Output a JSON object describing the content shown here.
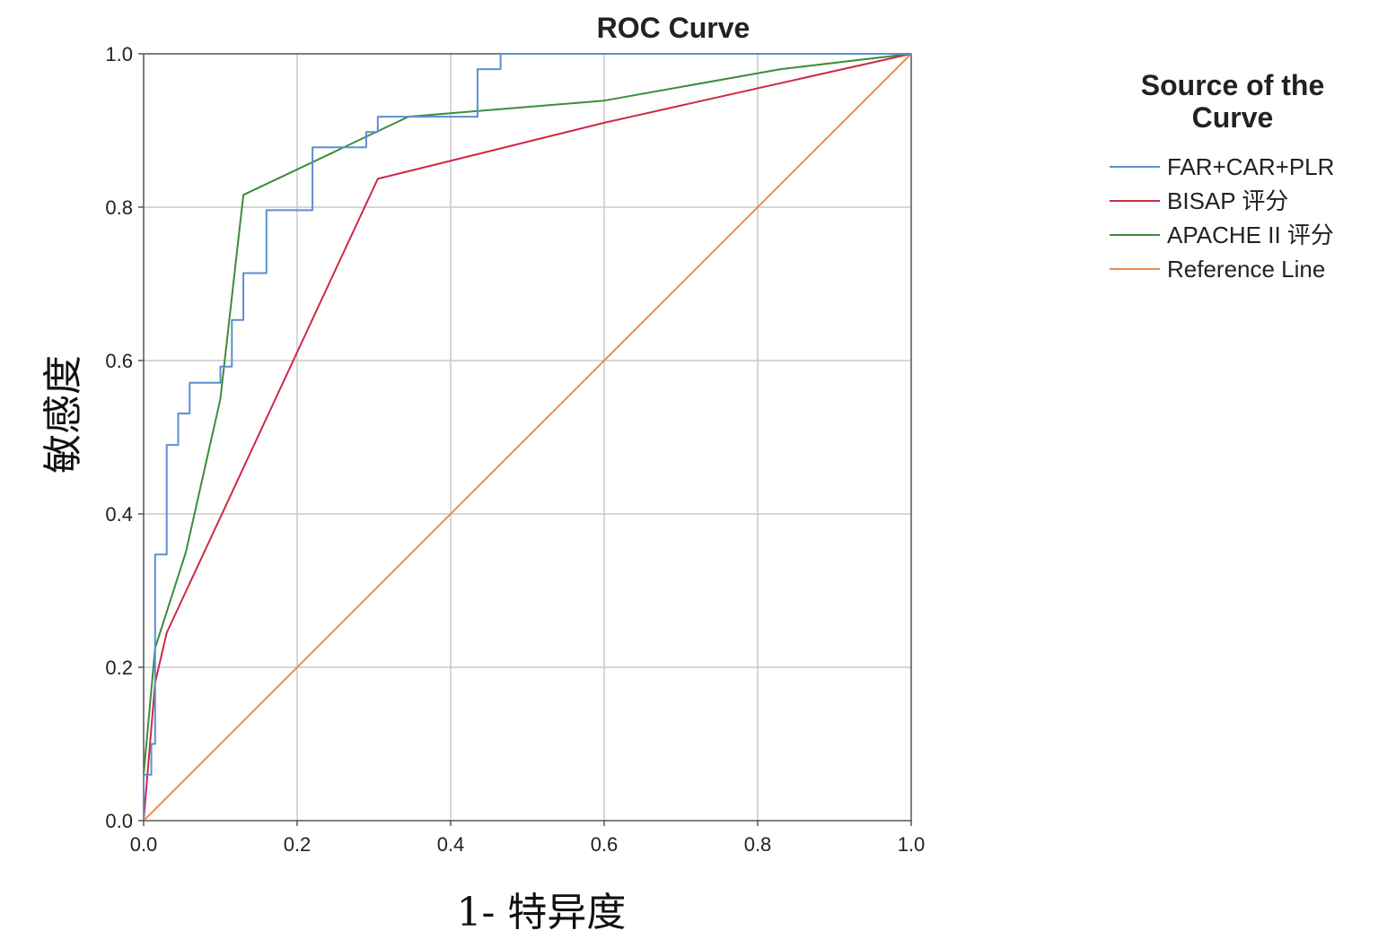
{
  "chart_data": {
    "type": "line",
    "title": "ROC Curve",
    "xlabel": "1- 特异度",
    "ylabel": "敏感度",
    "xlim": [
      0,
      1
    ],
    "ylim": [
      0,
      1
    ],
    "grid": true,
    "x_ticks": [
      "0.0",
      "0.2",
      "0.4",
      "0.6",
      "0.8",
      "1.0"
    ],
    "y_ticks": [
      "0.0",
      "0.2",
      "0.4",
      "0.6",
      "0.8",
      "1.0"
    ],
    "legend": {
      "title_line1": "Source of the",
      "title_line2": "Curve",
      "placement": "right"
    },
    "series": [
      {
        "name": "FAR+CAR+PLR",
        "color": "#5b8fd0",
        "step": true,
        "x": [
          0,
          0,
          0.01,
          0.01,
          0.015,
          0.015,
          0.03,
          0.03,
          0.045,
          0.045,
          0.06,
          0.06,
          0.1,
          0.1,
          0.115,
          0.115,
          0.13,
          0.13,
          0.16,
          0.16,
          0.22,
          0.22,
          0.29,
          0.29,
          0.305,
          0.305,
          0.435,
          0.435,
          0.465,
          0.465,
          1.0
        ],
        "y": [
          0,
          0.06,
          0.06,
          0.1,
          0.1,
          0.347,
          0.347,
          0.49,
          0.49,
          0.531,
          0.531,
          0.571,
          0.571,
          0.592,
          0.592,
          0.653,
          0.653,
          0.714,
          0.714,
          0.796,
          0.796,
          0.878,
          0.878,
          0.898,
          0.898,
          0.918,
          0.918,
          0.98,
          0.98,
          1.0,
          1.0
        ]
      },
      {
        "name": "BISAP 评分",
        "color": "#cc2a48",
        "x": [
          0,
          0.015,
          0.03,
          0.305,
          0.6,
          1.0
        ],
        "y": [
          0,
          0.18,
          0.245,
          0.837,
          0.91,
          1.0
        ]
      },
      {
        "name": "APACHE II 评分",
        "color": "#3c8c3c",
        "x": [
          0,
          0.015,
          0.055,
          0.1,
          0.13,
          0.345,
          0.6,
          0.83,
          1.0
        ],
        "y": [
          0.06,
          0.225,
          0.35,
          0.55,
          0.816,
          0.918,
          0.939,
          0.98,
          1.0
        ]
      },
      {
        "name": "Reference Line",
        "color": "#f08c46",
        "x": [
          0,
          1
        ],
        "y": [
          0,
          1
        ]
      }
    ]
  }
}
